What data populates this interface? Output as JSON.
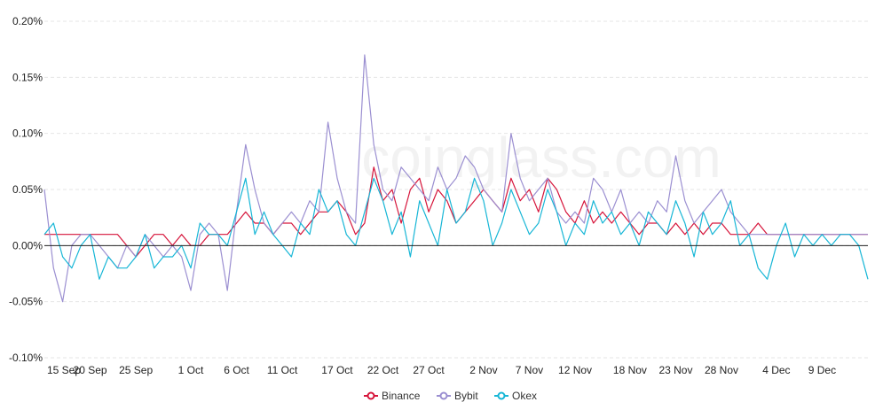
{
  "chart_data": {
    "type": "line",
    "x": [
      "15 Sep",
      "16 Sep",
      "17 Sep",
      "18 Sep",
      "19 Sep",
      "20 Sep",
      "21 Sep",
      "22 Sep",
      "23 Sep",
      "24 Sep",
      "25 Sep",
      "26 Sep",
      "27 Sep",
      "28 Sep",
      "29 Sep",
      "30 Sep",
      "1 Oct",
      "2 Oct",
      "3 Oct",
      "4 Oct",
      "5 Oct",
      "6 Oct",
      "7 Oct",
      "8 Oct",
      "9 Oct",
      "10 Oct",
      "11 Oct",
      "12 Oct",
      "13 Oct",
      "14 Oct",
      "15 Oct",
      "16 Oct",
      "17 Oct",
      "18 Oct",
      "19 Oct",
      "20 Oct",
      "21 Oct",
      "22 Oct",
      "23 Oct",
      "24 Oct",
      "25 Oct",
      "26 Oct",
      "27 Oct",
      "28 Oct",
      "29 Oct",
      "30 Oct",
      "31 Oct",
      "1 Nov",
      "2 Nov",
      "3 Nov",
      "4 Nov",
      "5 Nov",
      "6 Nov",
      "7 Nov",
      "8 Nov",
      "9 Nov",
      "10 Nov",
      "11 Nov",
      "12 Nov",
      "13 Nov",
      "14 Nov",
      "15 Nov",
      "16 Nov",
      "17 Nov",
      "18 Nov",
      "19 Nov",
      "20 Nov",
      "21 Nov",
      "22 Nov",
      "23 Nov",
      "24 Nov",
      "25 Nov",
      "26 Nov",
      "27 Nov",
      "28 Nov",
      "29 Nov",
      "30 Nov",
      "1 Dec",
      "2 Dec",
      "3 Dec",
      "4 Dec",
      "5 Dec",
      "6 Dec",
      "7 Dec",
      "8 Dec",
      "9 Dec",
      "10 Dec",
      "11 Dec",
      "12 Dec",
      "13 Dec",
      "14 Dec"
    ],
    "x_tick_labels": [
      "15 Sep",
      "20 Sep",
      "25 Sep",
      "1 Oct",
      "6 Oct",
      "11 Oct",
      "17 Oct",
      "22 Oct",
      "27 Oct",
      "2 Nov",
      "7 Nov",
      "12 Nov",
      "18 Nov",
      "23 Nov",
      "28 Nov",
      "4 Dec",
      "9 Dec"
    ],
    "y_tick_labels": [
      "0.20%",
      "0.15%",
      "0.10%",
      "0.05%",
      "0.00%",
      "-0.05%",
      "-0.10%"
    ],
    "ylim": [
      -0.1,
      0.2
    ],
    "y_unit": "%",
    "grid": true,
    "legend_position": "bottom-center",
    "series": [
      {
        "name": "Binance",
        "color": "#d6143a",
        "values": [
          0.01,
          0.01,
          0.01,
          0.01,
          0.01,
          0.01,
          0.01,
          0.01,
          0.01,
          0.0,
          -0.01,
          0.0,
          0.01,
          0.01,
          0.0,
          0.01,
          0.0,
          0.0,
          0.01,
          0.01,
          0.01,
          0.02,
          0.03,
          0.02,
          0.02,
          0.01,
          0.02,
          0.02,
          0.01,
          0.02,
          0.03,
          0.03,
          0.04,
          0.03,
          0.01,
          0.02,
          0.07,
          0.04,
          0.05,
          0.02,
          0.05,
          0.06,
          0.03,
          0.05,
          0.04,
          0.02,
          0.03,
          0.04,
          0.05,
          0.04,
          0.03,
          0.06,
          0.04,
          0.05,
          0.03,
          0.06,
          0.05,
          0.03,
          0.02,
          0.04,
          0.02,
          0.03,
          0.02,
          0.03,
          0.02,
          0.01,
          0.02,
          0.02,
          0.01,
          0.02,
          0.01,
          0.02,
          0.01,
          0.02,
          0.02,
          0.01,
          0.01,
          0.01,
          0.02,
          0.01,
          0.01,
          0.01,
          0.01,
          0.01,
          0.01,
          0.01,
          0.01,
          0.01,
          0.01,
          0.01,
          0.01
        ]
      },
      {
        "name": "Bybit",
        "color": "#9b8fd1",
        "values": [
          0.05,
          -0.02,
          -0.05,
          0.0,
          0.01,
          0.01,
          0.0,
          -0.01,
          -0.02,
          0.0,
          -0.01,
          0.01,
          0.0,
          -0.01,
          0.0,
          -0.01,
          -0.04,
          0.01,
          0.02,
          0.01,
          -0.04,
          0.03,
          0.09,
          0.05,
          0.02,
          0.01,
          0.02,
          0.03,
          0.02,
          0.04,
          0.03,
          0.11,
          0.06,
          0.03,
          0.02,
          0.17,
          0.09,
          0.05,
          0.04,
          0.07,
          0.06,
          0.05,
          0.04,
          0.07,
          0.05,
          0.06,
          0.08,
          0.07,
          0.05,
          0.04,
          0.03,
          0.1,
          0.06,
          0.04,
          0.05,
          0.06,
          0.03,
          0.02,
          0.03,
          0.02,
          0.06,
          0.05,
          0.03,
          0.05,
          0.02,
          0.03,
          0.02,
          0.04,
          0.03,
          0.08,
          0.04,
          0.02,
          0.03,
          0.04,
          0.05,
          0.03,
          0.02,
          0.01,
          0.01,
          0.01,
          0.01,
          0.01,
          0.01,
          0.01,
          0.01,
          0.01,
          0.01,
          0.01,
          0.01,
          0.01,
          0.01
        ]
      },
      {
        "name": "Okex",
        "color": "#17b6d6",
        "values": [
          0.01,
          0.02,
          -0.01,
          -0.02,
          0.0,
          0.01,
          -0.03,
          -0.01,
          -0.02,
          -0.02,
          -0.01,
          0.01,
          -0.02,
          -0.01,
          -0.01,
          0.0,
          -0.02,
          0.02,
          0.01,
          0.01,
          0.0,
          0.03,
          0.06,
          0.01,
          0.03,
          0.01,
          0.0,
          -0.01,
          0.02,
          0.01,
          0.05,
          0.03,
          0.04,
          0.01,
          0.0,
          0.03,
          0.06,
          0.04,
          0.01,
          0.03,
          -0.01,
          0.04,
          0.02,
          0.0,
          0.05,
          0.02,
          0.03,
          0.06,
          0.04,
          0.0,
          0.02,
          0.05,
          0.03,
          0.01,
          0.02,
          0.05,
          0.03,
          0.0,
          0.02,
          0.01,
          0.04,
          0.02,
          0.03,
          0.01,
          0.02,
          0.0,
          0.03,
          0.02,
          0.01,
          0.04,
          0.02,
          -0.01,
          0.03,
          0.01,
          0.02,
          0.04,
          0.0,
          0.01,
          -0.02,
          -0.03,
          0.0,
          0.02,
          -0.01,
          0.01,
          0.0,
          0.01,
          0.0,
          0.01,
          0.01,
          0.0,
          -0.03
        ]
      }
    ]
  },
  "watermark": "coinglass.com"
}
